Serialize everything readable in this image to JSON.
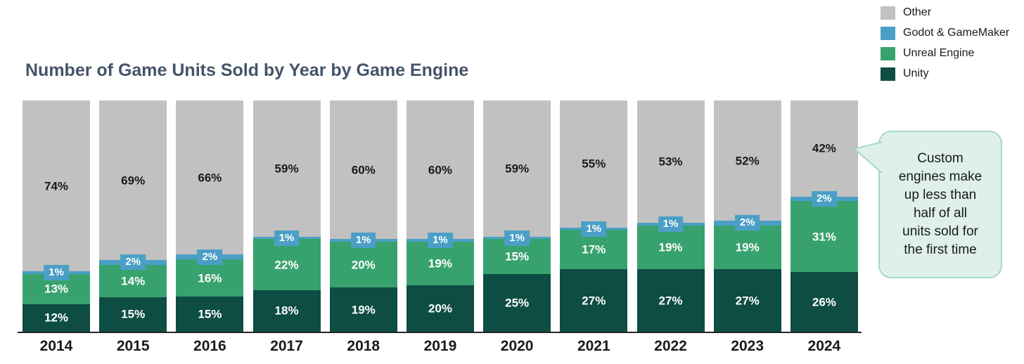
{
  "title": "Number of Game Units Sold by Year by Game Engine",
  "legend": {
    "position": "top-right",
    "items": [
      {
        "label": "Other",
        "color": "#c1c1c1"
      },
      {
        "label": "Godot & GameMaker",
        "color": "#4b9fc6"
      },
      {
        "label": "Unreal Engine",
        "color": "#38a26f"
      },
      {
        "label": "Unity",
        "color": "#0d4d43"
      }
    ]
  },
  "callout": {
    "text": "Custom engines make up less than half of all units sold for the first time",
    "text_lines": [
      "Custom",
      "engines make",
      "up less than",
      "half of all",
      "units sold for",
      "the first time"
    ],
    "fill_color": "#def0e8",
    "border_color": "#a5d9c2",
    "points_to": "2024 bar"
  },
  "chart_data": {
    "type": "bar",
    "stacked": true,
    "percent_stacked": true,
    "title": "Number of Game Units Sold by Year by Game Engine",
    "xlabel": "",
    "ylabel": "",
    "ylim": [
      0,
      100
    ],
    "grid": false,
    "legend_position": "top-right",
    "value_suffix": "%",
    "categories": [
      "2014",
      "2015",
      "2016",
      "2017",
      "2018",
      "2019",
      "2020",
      "2021",
      "2022",
      "2023",
      "2024"
    ],
    "series": [
      {
        "name": "Unity",
        "color": "#0d4d43",
        "label_color": "#ffffff",
        "boxed_labels": false,
        "values": [
          12,
          15,
          15,
          18,
          19,
          20,
          25,
          27,
          27,
          27,
          26
        ]
      },
      {
        "name": "Unreal Engine",
        "color": "#38a26f",
        "label_color": "#ffffff",
        "boxed_labels": false,
        "values": [
          13,
          14,
          16,
          22,
          20,
          19,
          15,
          17,
          19,
          19,
          31
        ]
      },
      {
        "name": "Godot & GameMaker",
        "color": "#4b9fc6",
        "label_color": "#ffffff",
        "boxed_labels": true,
        "values": [
          1,
          2,
          2,
          1,
          1,
          1,
          1,
          1,
          1,
          2,
          2
        ]
      },
      {
        "name": "Other",
        "color": "#c1c1c1",
        "label_color": "#1a1a1a",
        "boxed_labels": false,
        "values": [
          74,
          69,
          66,
          59,
          60,
          60,
          59,
          55,
          53,
          52,
          42
        ]
      }
    ]
  },
  "colors": {
    "title": "#44546a",
    "axis_line": "#262626",
    "background": "#ffffff"
  }
}
